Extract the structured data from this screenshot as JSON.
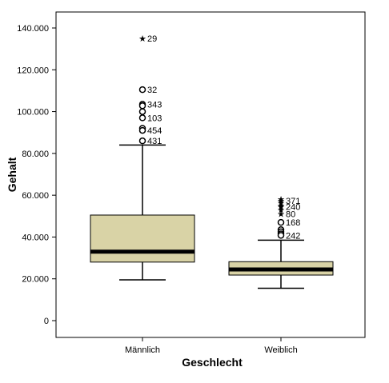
{
  "chart_data": {
    "type": "boxplot",
    "title": "",
    "xlabel": "Geschlecht",
    "ylabel": "Gehalt",
    "ylim": [
      0,
      140000
    ],
    "y_ticks": [
      0,
      20000,
      40000,
      60000,
      80000,
      100000,
      120000,
      140000
    ],
    "y_tick_labels": [
      "0",
      "20.000",
      "40.000",
      "60.000",
      "80.000",
      "100.000",
      "120.000",
      "140.000"
    ],
    "grid": false,
    "legend": "none",
    "box_color": "#d9d3a6",
    "median_color": "#000000",
    "categories": [
      "Männlich",
      "Weiblich"
    ],
    "series": [
      {
        "category": "Männlich",
        "whisker_low": 19500,
        "q1": 28000,
        "median": 33000,
        "q3": 50500,
        "whisker_high": 84000,
        "outliers": [
          {
            "value": 110500,
            "label": "32",
            "symbol": "circle"
          },
          {
            "value": 103500,
            "label": "343",
            "symbol": "circle"
          },
          {
            "value": 102800,
            "label": "",
            "symbol": "circle"
          },
          {
            "value": 100000,
            "label": "",
            "symbol": "circle"
          },
          {
            "value": 97000,
            "label": "103",
            "symbol": "circle"
          },
          {
            "value": 92000,
            "label": "",
            "symbol": "circle"
          },
          {
            "value": 91000,
            "label": "454",
            "symbol": "circle"
          },
          {
            "value": 86000,
            "label": "431",
            "symbol": "circle"
          }
        ],
        "extremes": [
          {
            "value": 135000,
            "label": "29",
            "symbol": "star"
          }
        ]
      },
      {
        "category": "Weiblich",
        "whisker_low": 15500,
        "q1": 21800,
        "median": 24500,
        "q3": 28200,
        "whisker_high": 38500,
        "outliers": [
          {
            "value": 47000,
            "label": "168",
            "symbol": "circle"
          },
          {
            "value": 43500,
            "label": "",
            "symbol": "circle"
          },
          {
            "value": 42500,
            "label": "",
            "symbol": "circle"
          },
          {
            "value": 41500,
            "label": "",
            "symbol": "circle"
          },
          {
            "value": 40800,
            "label": "242",
            "symbol": "circle"
          }
        ],
        "extremes": [
          {
            "value": 58200,
            "label": "",
            "symbol": "star"
          },
          {
            "value": 57300,
            "label": "371",
            "symbol": "star"
          },
          {
            "value": 56500,
            "label": "",
            "symbol": "star"
          },
          {
            "value": 55000,
            "label": "",
            "symbol": "star"
          },
          {
            "value": 54500,
            "label": "240",
            "symbol": "star"
          },
          {
            "value": 53000,
            "label": "",
            "symbol": "star"
          },
          {
            "value": 51000,
            "label": "80",
            "symbol": "star"
          }
        ]
      }
    ]
  }
}
